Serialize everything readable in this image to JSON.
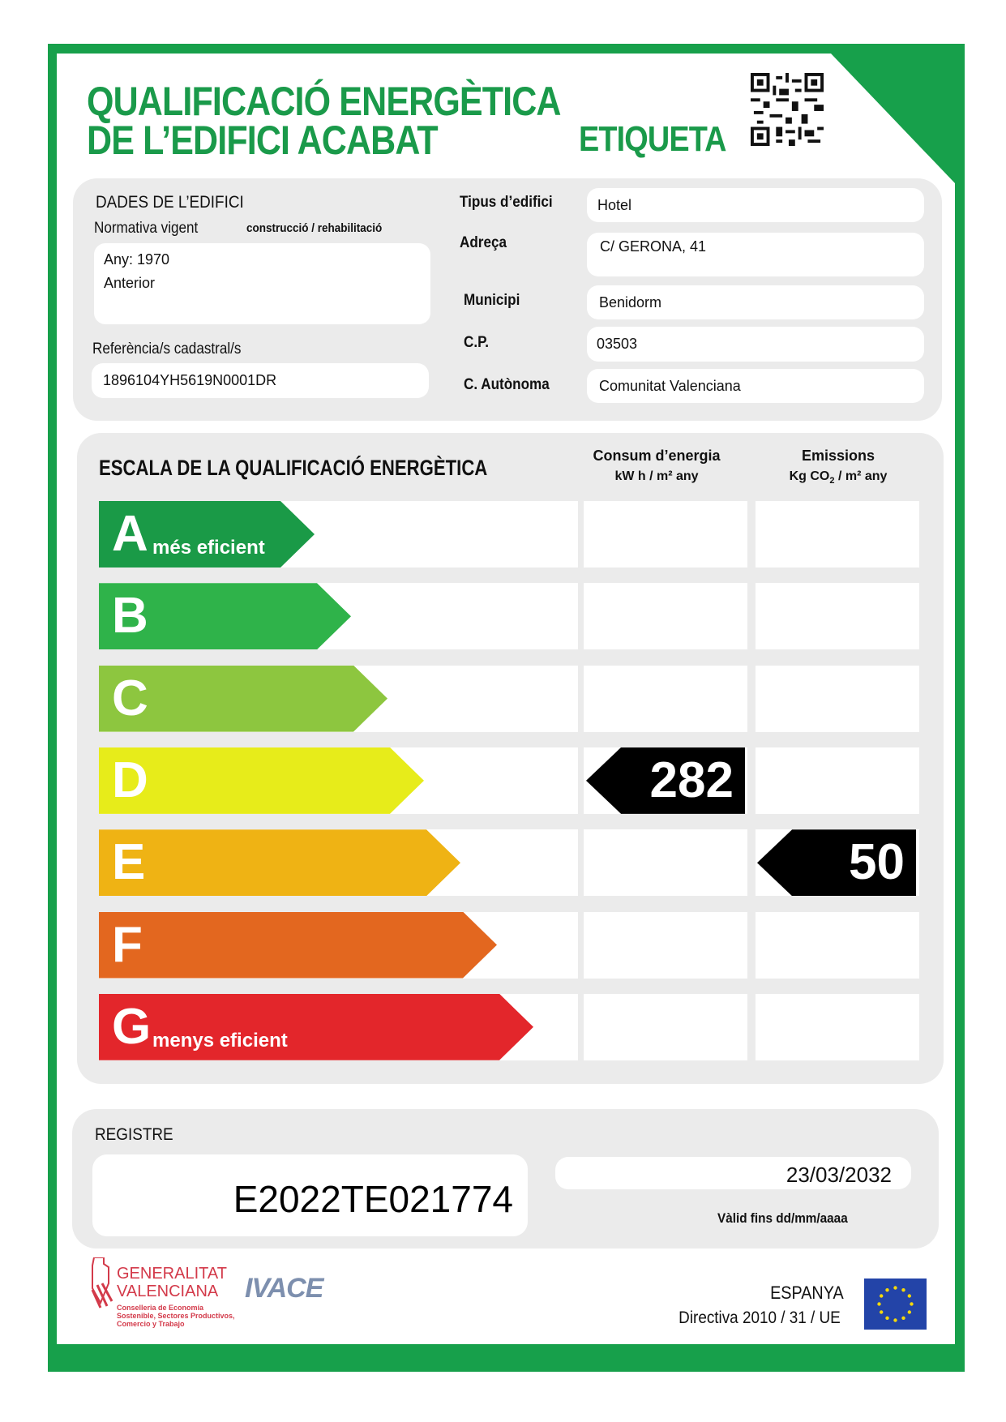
{
  "header": {
    "title_line1": "QUALIFICACIÓ ENERGÈTICA",
    "title_line2": "DE L’EDIFICI  ACABAT",
    "label": "ETIQUETA",
    "brand_color": "#17a04b"
  },
  "building": {
    "section_title": "DADES DE L’EDIFICI",
    "normativa_label": "Normativa vigent",
    "normativa_sub": "construcció / rehabilitació",
    "year": "Any: 1970",
    "normativa_value": "Anterior",
    "cadastral_label": "Referència/s cadastral/s",
    "cadastral_value": "1896104YH5619N0001DR",
    "fields": [
      {
        "label": "Tipus d’edifici",
        "value": "Hotel"
      },
      {
        "label": "Adreça",
        "value": "C/ GERONA, 41"
      },
      {
        "label": "Municipi",
        "value": "Benidorm"
      },
      {
        "label": "C.P.",
        "value": "03503"
      },
      {
        "label": "C. Autònoma",
        "value": "Comunitat Valenciana"
      }
    ]
  },
  "scale": {
    "title": "ESCALA DE LA QUALIFICACIÓ ENERGÈTICA",
    "consum_header": "Consum d’energia",
    "consum_unit": "kW h / m² any",
    "emissions_header": "Emissions",
    "emissions_unit_pre": "Kg CO",
    "emissions_unit_sub": "2",
    "emissions_unit_post": " / m² any",
    "classes": [
      {
        "letter": "A",
        "sub": "més eficient",
        "color": "#1a9a47"
      },
      {
        "letter": "B",
        "sub": "",
        "color": "#2fb34a"
      },
      {
        "letter": "C",
        "sub": "",
        "color": "#8dc63f"
      },
      {
        "letter": "D",
        "sub": "",
        "color": "#e7ec1a"
      },
      {
        "letter": "E",
        "sub": "",
        "color": "#efb314"
      },
      {
        "letter": "F",
        "sub": "",
        "color": "#e3671f"
      },
      {
        "letter": "G",
        "sub": "menys eficient",
        "color": "#e3262b"
      }
    ],
    "consum_value": "282",
    "consum_class": "D",
    "emissions_value": "50",
    "emissions_class": "E"
  },
  "registre": {
    "title": "REGISTRE",
    "code": "E2022TE021774",
    "valid_date": "23/03/2032",
    "valid_label": "Vàlid fins dd/mm/aaaa"
  },
  "footer": {
    "gv_line1": "GENERALITAT",
    "gv_line2": "VALENCIANA",
    "gv_sub": "Conselleria de Economía Sostenible, Sectores Productivos, Comercio y Trabajo",
    "ivace": "IVACE",
    "country": "ESPANYA",
    "directive": "Directiva 2010 / 31 / UE"
  }
}
